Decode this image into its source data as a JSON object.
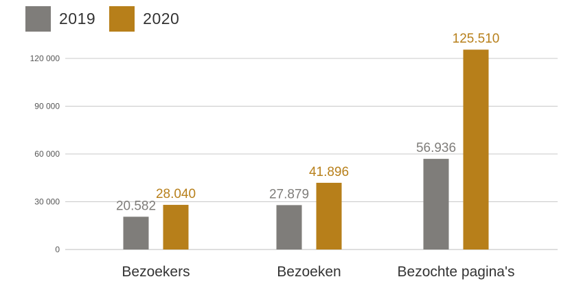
{
  "legend": {
    "items": [
      {
        "label": "2019",
        "color": "#7f7d7a"
      },
      {
        "label": "2020",
        "color": "#b77f1a"
      }
    ]
  },
  "chart_data": {
    "type": "bar",
    "title": "",
    "xlabel": "",
    "ylabel": "",
    "categories": [
      "Bezoekers",
      "Bezoeken",
      "Bezochte pagina's"
    ],
    "series": [
      {
        "name": "2019",
        "color": "#7f7d7a",
        "values": [
          20582,
          27879,
          56936
        ],
        "labels": [
          "20.582",
          "27.879",
          "56.936"
        ]
      },
      {
        "name": "2020",
        "color": "#b77f1a",
        "values": [
          28040,
          41896,
          125510
        ],
        "labels": [
          "28.040",
          "41.896",
          "125.510"
        ]
      }
    ],
    "ylim": [
      0,
      120000
    ],
    "yticks": [
      {
        "value": 0,
        "label": "0"
      },
      {
        "value": 30000,
        "label": "30 000"
      },
      {
        "value": 60000,
        "label": "60 000"
      },
      {
        "value": 90000,
        "label": "90 000"
      },
      {
        "value": 120000,
        "label": "120 000"
      }
    ],
    "grid": true,
    "legend_position": "top-left"
  }
}
